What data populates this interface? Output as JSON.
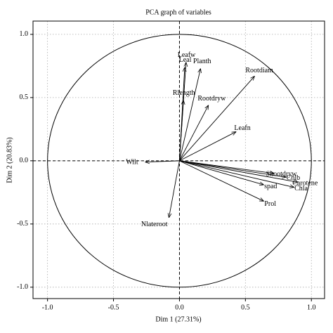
{
  "chart_data": {
    "type": "pca_variables",
    "title": "PCA graph of variables",
    "x_label": "Dim 1 (27.31%)",
    "y_label": "Dim 2 (20.83%)",
    "labels": [
      "Leafw",
      "Leal",
      "Planth",
      "Rlength",
      "Rootdryw",
      "Rootdiam",
      "Leafn",
      "Wilt",
      "Nlateroot",
      "Shootdryw",
      "Chlb",
      "Carotene",
      "Chla",
      "spad",
      "Prol"
    ],
    "x": [
      0.05,
      0.04,
      0.16,
      0.03,
      0.22,
      0.57,
      0.43,
      -0.26,
      -0.08,
      0.72,
      0.81,
      0.9,
      0.87,
      0.64,
      0.64
    ],
    "y": [
      0.78,
      0.74,
      0.73,
      0.48,
      0.44,
      0.67,
      0.23,
      -0.01,
      -0.45,
      -0.1,
      -0.13,
      -0.17,
      -0.21,
      -0.19,
      -0.32
    ],
    "color": "#000000",
    "xlim": [
      -1.11,
      1.1
    ],
    "ylim": [
      -1.09,
      1.105
    ],
    "xticks": [
      {
        "value": -1,
        "label": "-1.0"
      },
      {
        "value": -0.5,
        "label": "-0.5"
      },
      {
        "value": 0,
        "label": "0.0"
      },
      {
        "value": 0.5,
        "label": "0.5"
      },
      {
        "value": 1,
        "label": "1.0"
      }
    ],
    "yticks": [
      {
        "value": -1,
        "label": "-1.0"
      },
      {
        "value": -0.5,
        "label": "-0.5"
      },
      {
        "value": 0,
        "label": "0.0"
      },
      {
        "value": 0.5,
        "label": "0.5"
      },
      {
        "value": 1,
        "label": "1.0"
      }
    ],
    "grid": true
  }
}
